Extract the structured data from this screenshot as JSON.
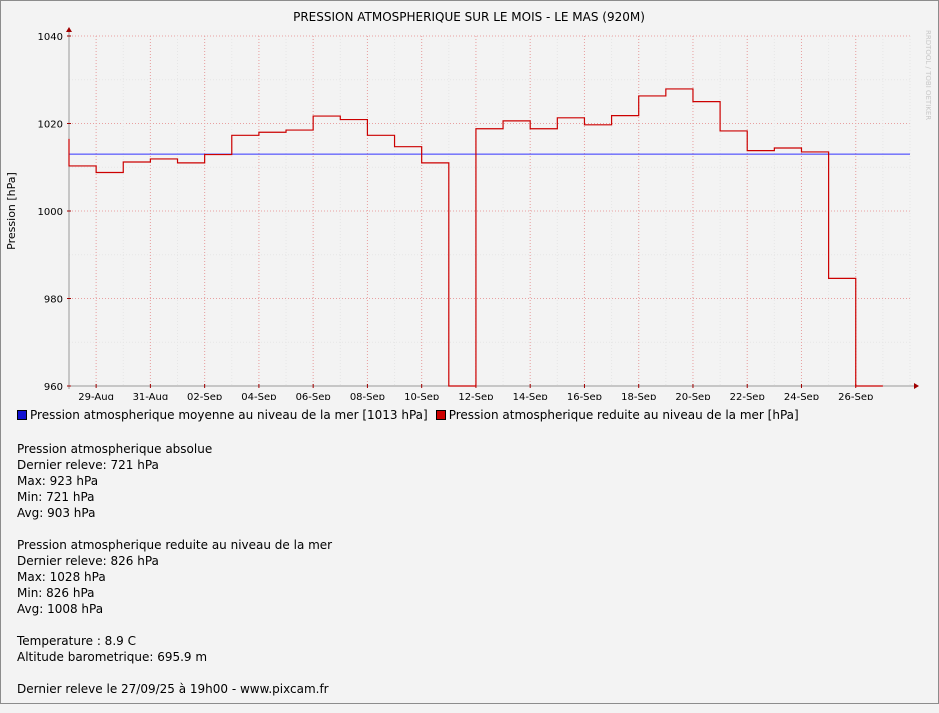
{
  "chart_data": {
    "type": "line",
    "title": "PRESSION ATMOSPHERIQUE SUR LE MOIS - LE MAS (920M)",
    "ylabel": "Pression [hPa]",
    "xlabel": "",
    "ylim": [
      960,
      1040
    ],
    "yticks": [
      960,
      980,
      1000,
      1020,
      1040
    ],
    "ytick_labels": [
      "960",
      "980",
      "1000",
      "1020",
      "1040"
    ],
    "xlim": [
      "2025-08-28",
      "2025-09-28"
    ],
    "xtick_labels": [
      "29-Aug",
      "31-Aug",
      "02-Sep",
      "04-Sep",
      "06-Sep",
      "08-Sep",
      "10-Sep",
      "12-Sep",
      "14-Sep",
      "16-Sep",
      "18-Sep",
      "20-Sep",
      "22-Sep",
      "24-Sep",
      "26-Sep"
    ],
    "xtick_dates": [
      "2025-08-29",
      "2025-08-31",
      "2025-09-02",
      "2025-09-04",
      "2025-09-06",
      "2025-09-08",
      "2025-09-10",
      "2025-09-12",
      "2025-09-14",
      "2025-09-16",
      "2025-09-18",
      "2025-09-20",
      "2025-09-22",
      "2025-09-24",
      "2025-09-26"
    ],
    "grid": true,
    "series": [
      {
        "name": "Pression atmospherique moyenne au niveau de la mer [1013 hPa]",
        "kind": "hline",
        "color": "#3333ff",
        "values": [
          1013
        ]
      },
      {
        "name": "Pression atmospherique reduite au niveau de la mer [hPa]",
        "kind": "step",
        "color": "#cc0000",
        "x": [
          "2025-08-28",
          "2025-08-28",
          "2025-08-29",
          "2025-08-30",
          "2025-08-31",
          "2025-09-01",
          "2025-09-02",
          "2025-09-03",
          "2025-09-04",
          "2025-09-05",
          "2025-09-06",
          "2025-09-07",
          "2025-09-08",
          "2025-09-09",
          "2025-09-10",
          "2025-09-11",
          "2025-09-12",
          "2025-09-13",
          "2025-09-14",
          "2025-09-15",
          "2025-09-16",
          "2025-09-17",
          "2025-09-18",
          "2025-09-19",
          "2025-09-20",
          "2025-09-21",
          "2025-09-22",
          "2025-09-23",
          "2025-09-24",
          "2025-09-25",
          "2025-09-26",
          "2025-09-27"
        ],
        "values": [
          1016.5,
          1010.3,
          1008.8,
          1011.2,
          1011.9,
          1011.0,
          1012.9,
          1017.3,
          1018.0,
          1018.5,
          1021.7,
          1020.9,
          1017.3,
          1014.7,
          1011.0,
          960,
          1018.8,
          1020.6,
          1018.8,
          1021.3,
          1019.7,
          1021.8,
          1026.3,
          1027.9,
          1025.0,
          1018.3,
          1013.8,
          1014.4,
          1013.5,
          984.6,
          960,
          960
        ]
      }
    ]
  },
  "legend": {
    "items": [
      {
        "label": "Pression atmospherique moyenne au niveau de la mer [1013 hPa]",
        "color": "#1010d0"
      },
      {
        "label": "Pression atmospherique reduite au niveau de la mer [hPa]",
        "color": "#cc0000"
      }
    ]
  },
  "stats": {
    "absolute": {
      "title": "Pression atmospherique absolue",
      "last": "Dernier releve: 721 hPa",
      "max": "Max: 923 hPa",
      "min": "Min: 721 hPa",
      "avg": "Avg: 903 hPa"
    },
    "reduced": {
      "title": "Pression atmospherique reduite au niveau de la mer",
      "last": "Dernier releve: 826 hPa",
      "max": "Max: 1028 hPa",
      "min": "Min: 826 hPa",
      "avg": "Avg: 1008 hPa"
    },
    "temperature": "Temperature : 8.9 C",
    "altitude": "Altitude barometrique: 695.9 m",
    "footer": "Dernier releve le 27/09/25 à 19h00 - www.pixcam.fr"
  },
  "watermark": "RRDTOOL / TOBI OETIKER"
}
